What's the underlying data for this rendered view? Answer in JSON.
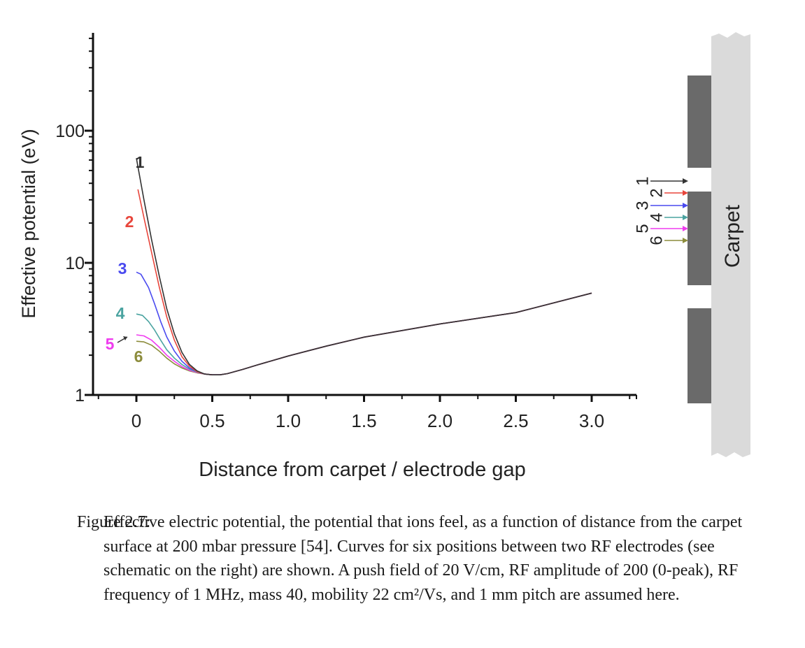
{
  "chart_data": {
    "type": "line",
    "title": "",
    "xlabel": "Distance from carpet / electrode gap",
    "ylabel": "Effective potential (eV)",
    "xlim": [
      -0.1,
      3.1
    ],
    "ylim": [
      1,
      300
    ],
    "yscale": "log",
    "x_ticks": [
      "0",
      "0.5",
      "1.0",
      "1.5",
      "2.0",
      "2.5",
      "3.0"
    ],
    "y_ticks": [
      "1",
      "10",
      "100"
    ],
    "grid": false,
    "legend": "none",
    "series": [
      {
        "name": "1",
        "color": "#333333",
        "points": [
          [
            0,
            62
          ],
          [
            0.05,
            30
          ],
          [
            0.1,
            15
          ],
          [
            0.15,
            8
          ],
          [
            0.2,
            4.5
          ],
          [
            0.25,
            2.9
          ],
          [
            0.3,
            2.1
          ],
          [
            0.35,
            1.7
          ],
          [
            0.4,
            1.52
          ],
          [
            0.45,
            1.44
          ],
          [
            0.5,
            1.42
          ],
          [
            0.55,
            1.42
          ],
          [
            0.6,
            1.45
          ],
          [
            0.7,
            1.56
          ],
          [
            0.8,
            1.69
          ],
          [
            1.0,
            1.97
          ],
          [
            1.25,
            2.34
          ],
          [
            1.5,
            2.74
          ],
          [
            2.0,
            3.45
          ],
          [
            2.5,
            4.2
          ],
          [
            3.0,
            5.9
          ]
        ]
      },
      {
        "name": "2",
        "color": "#e8463c",
        "points": [
          [
            0.01,
            36
          ],
          [
            0.05,
            22
          ],
          [
            0.1,
            12
          ],
          [
            0.15,
            6.6
          ],
          [
            0.2,
            3.9
          ],
          [
            0.25,
            2.6
          ],
          [
            0.3,
            1.95
          ],
          [
            0.35,
            1.65
          ],
          [
            0.4,
            1.5
          ],
          [
            0.45,
            1.44
          ],
          [
            0.5,
            1.42
          ],
          [
            0.55,
            1.42
          ],
          [
            0.6,
            1.45
          ],
          [
            0.7,
            1.56
          ],
          [
            0.8,
            1.69
          ],
          [
            1.0,
            1.97
          ],
          [
            1.25,
            2.34
          ],
          [
            1.5,
            2.74
          ],
          [
            2.0,
            3.45
          ],
          [
            2.5,
            4.2
          ],
          [
            3.0,
            5.9
          ]
        ]
      },
      {
        "name": "3",
        "color": "#4a4aef",
        "points": [
          [
            0,
            8.5
          ],
          [
            0.03,
            8.2
          ],
          [
            0.08,
            6.5
          ],
          [
            0.12,
            4.9
          ],
          [
            0.16,
            3.6
          ],
          [
            0.2,
            2.75
          ],
          [
            0.25,
            2.15
          ],
          [
            0.3,
            1.8
          ],
          [
            0.35,
            1.6
          ],
          [
            0.4,
            1.5
          ],
          [
            0.45,
            1.44
          ],
          [
            0.5,
            1.42
          ],
          [
            0.55,
            1.42
          ],
          [
            0.6,
            1.45
          ],
          [
            0.7,
            1.56
          ],
          [
            0.8,
            1.69
          ],
          [
            1.0,
            1.97
          ],
          [
            1.25,
            2.34
          ],
          [
            1.5,
            2.74
          ],
          [
            2.0,
            3.45
          ],
          [
            2.5,
            4.2
          ],
          [
            3.0,
            5.9
          ]
        ]
      },
      {
        "name": "4",
        "color": "#4aa3a0",
        "points": [
          [
            0,
            4.1
          ],
          [
            0.04,
            4.0
          ],
          [
            0.08,
            3.6
          ],
          [
            0.12,
            3.1
          ],
          [
            0.16,
            2.6
          ],
          [
            0.2,
            2.2
          ],
          [
            0.25,
            1.9
          ],
          [
            0.3,
            1.7
          ],
          [
            0.35,
            1.57
          ],
          [
            0.4,
            1.49
          ],
          [
            0.45,
            1.44
          ],
          [
            0.5,
            1.42
          ],
          [
            0.55,
            1.42
          ],
          [
            0.6,
            1.45
          ],
          [
            0.7,
            1.56
          ],
          [
            0.8,
            1.69
          ],
          [
            1.0,
            1.97
          ],
          [
            1.25,
            2.34
          ],
          [
            1.5,
            2.74
          ],
          [
            2.0,
            3.45
          ],
          [
            2.5,
            4.2
          ],
          [
            3.0,
            5.9
          ]
        ]
      },
      {
        "name": "5",
        "color": "#ef3cef",
        "points": [
          [
            0,
            2.85
          ],
          [
            0.05,
            2.8
          ],
          [
            0.1,
            2.6
          ],
          [
            0.15,
            2.3
          ],
          [
            0.2,
            2.0
          ],
          [
            0.25,
            1.8
          ],
          [
            0.3,
            1.64
          ],
          [
            0.35,
            1.54
          ],
          [
            0.4,
            1.48
          ],
          [
            0.45,
            1.44
          ],
          [
            0.5,
            1.42
          ],
          [
            0.55,
            1.42
          ],
          [
            0.6,
            1.45
          ],
          [
            0.7,
            1.56
          ],
          [
            0.8,
            1.69
          ],
          [
            1.0,
            1.97
          ],
          [
            1.25,
            2.34
          ],
          [
            1.5,
            2.74
          ],
          [
            2.0,
            3.45
          ],
          [
            2.5,
            4.2
          ],
          [
            3.0,
            5.9
          ]
        ]
      },
      {
        "name": "6",
        "color": "#8c8c3c",
        "points": [
          [
            0,
            2.55
          ],
          [
            0.05,
            2.52
          ],
          [
            0.1,
            2.38
          ],
          [
            0.15,
            2.15
          ],
          [
            0.2,
            1.9
          ],
          [
            0.25,
            1.72
          ],
          [
            0.3,
            1.6
          ],
          [
            0.35,
            1.52
          ],
          [
            0.4,
            1.47
          ],
          [
            0.45,
            1.44
          ],
          [
            0.5,
            1.42
          ],
          [
            0.55,
            1.42
          ],
          [
            0.6,
            1.45
          ],
          [
            0.7,
            1.56
          ],
          [
            0.8,
            1.69
          ],
          [
            1.0,
            1.97
          ],
          [
            1.25,
            2.34
          ],
          [
            1.5,
            2.74
          ],
          [
            2.0,
            3.45
          ],
          [
            2.5,
            4.2
          ],
          [
            3.0,
            5.9
          ]
        ]
      }
    ],
    "curve_labels": [
      {
        "text": "1",
        "color": "#333333"
      },
      {
        "text": "2",
        "color": "#e8463c"
      },
      {
        "text": "3",
        "color": "#4a4aef"
      },
      {
        "text": "4",
        "color": "#4aa3a0"
      },
      {
        "text": "5",
        "color": "#ef3cef"
      },
      {
        "text": "6",
        "color": "#8c8c3c"
      }
    ],
    "schematic": {
      "label": "Carpet",
      "position_labels_left": [
        "1",
        "3",
        "5"
      ],
      "position_labels_right": [
        "2",
        "4",
        "6"
      ],
      "electrode_color": "#6a6a6a",
      "carpet_color": "#dadada"
    }
  },
  "caption": {
    "label": "Figure 2.7:",
    "text": "Effective electric potential, the potential that ions feel, as a function of distance from the carpet surface at 200 mbar pressure [54]. Curves for six positions between two RF electrodes (see schematic on the right) are shown. A push field of 20 V/cm, RF amplitude of 200 (0-peak), RF frequency of 1 MHz, mass 40, mobility 22 cm²/Vs, and 1 mm pitch are assumed here."
  }
}
